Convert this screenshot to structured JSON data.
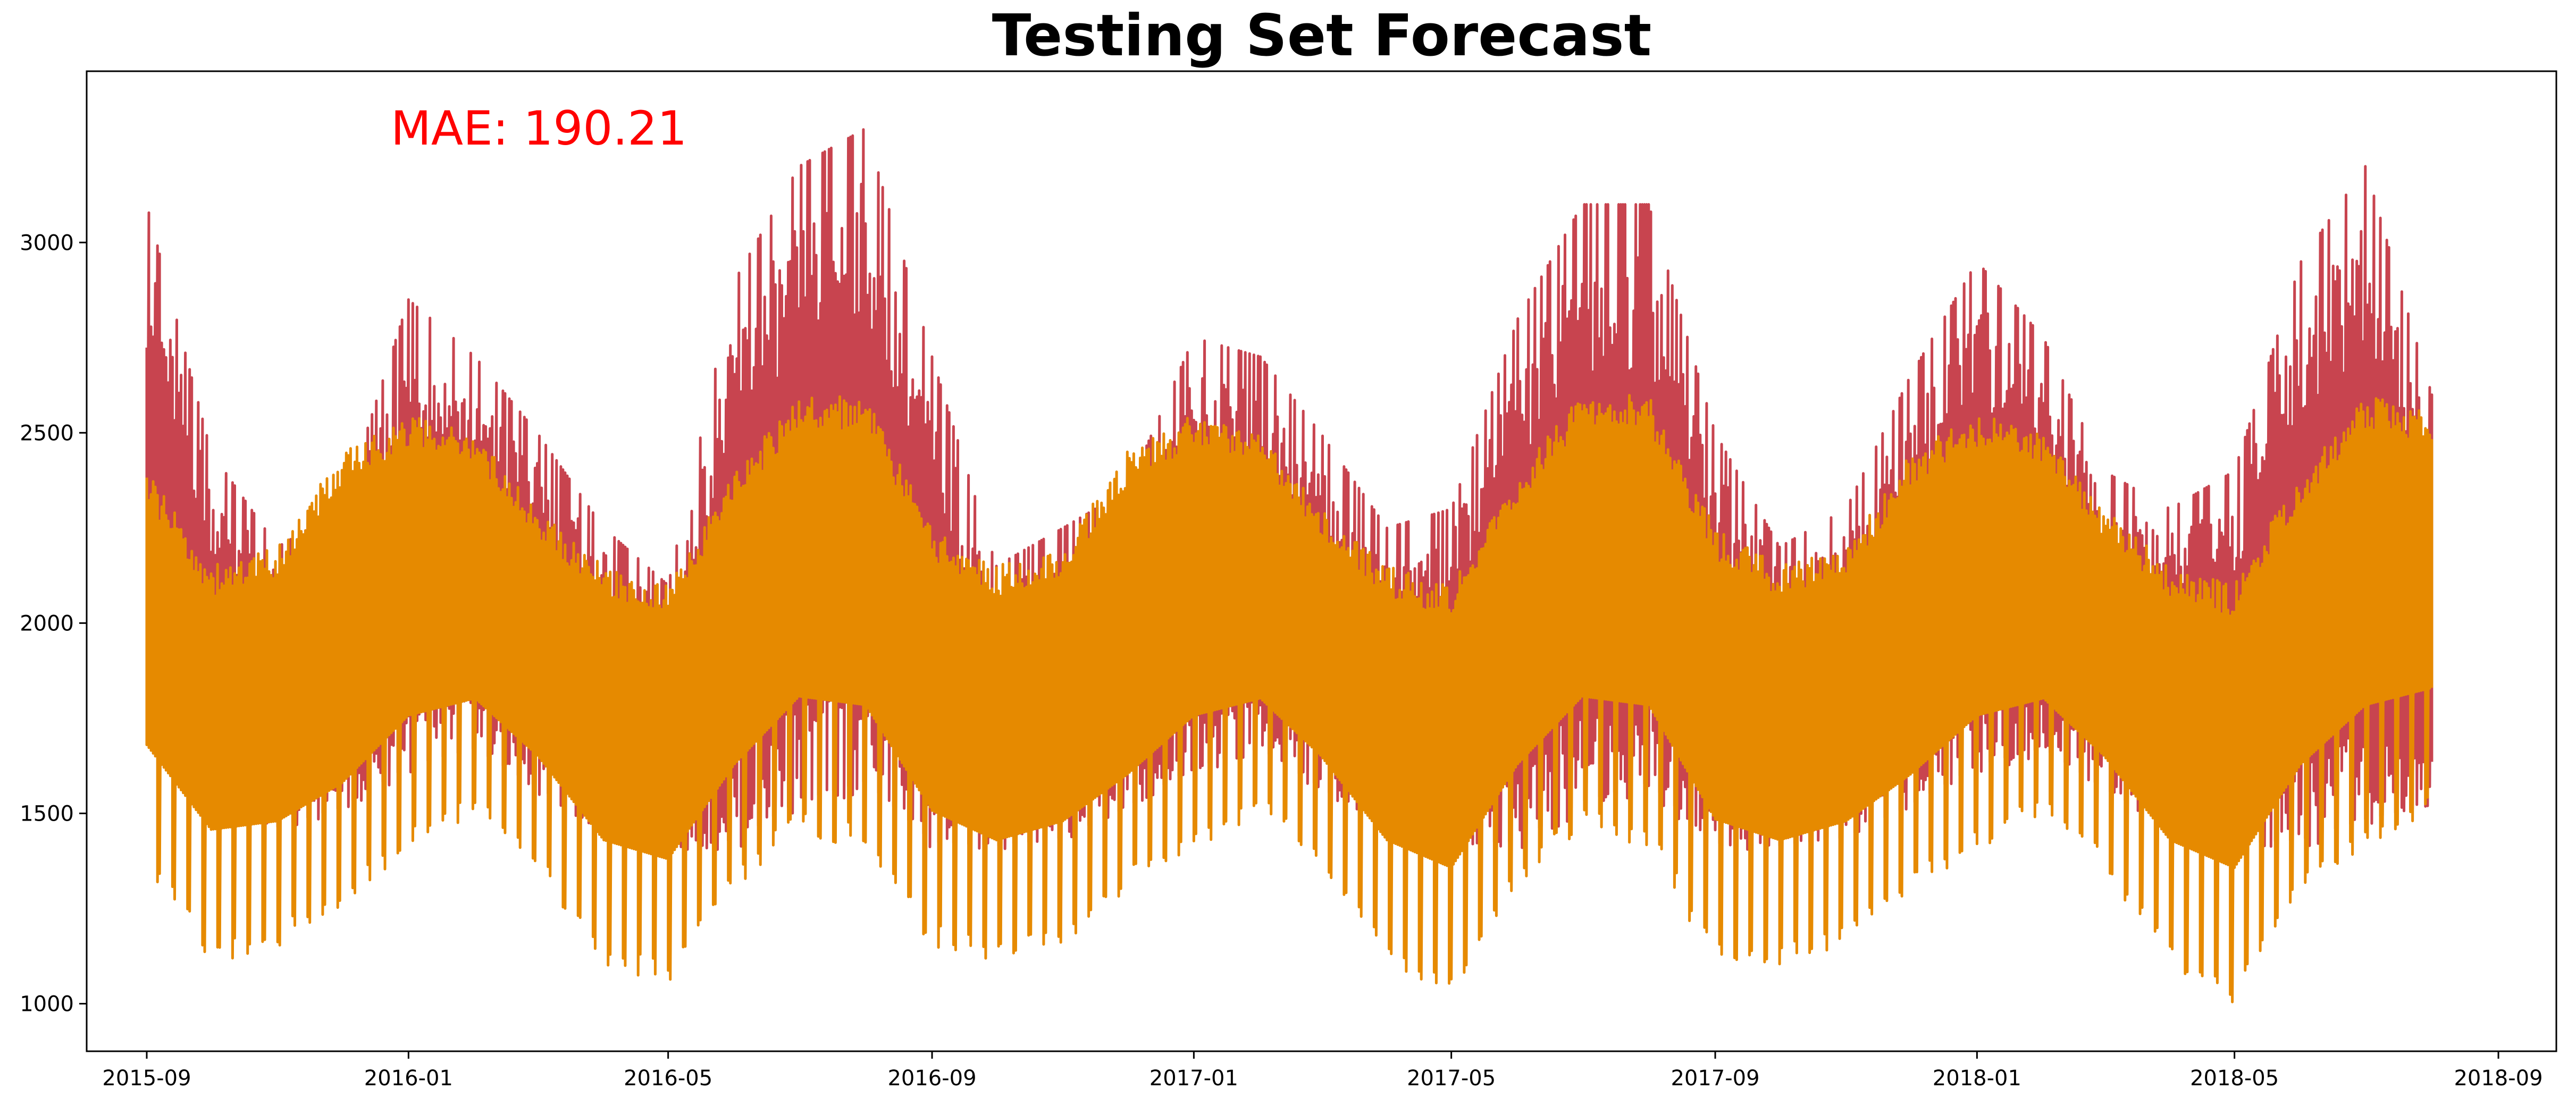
{
  "chart_data": {
    "type": "line",
    "title": "Testing Set Forecast",
    "xlabel": "",
    "ylabel": "",
    "x_range": [
      "2015-08-04",
      "2018-09-28"
    ],
    "ylim": [
      875,
      3450
    ],
    "x_ticks": [
      "2015-09",
      "2016-01",
      "2016-05",
      "2016-09",
      "2017-01",
      "2017-05",
      "2017-09",
      "2018-01",
      "2018-05",
      "2018-09"
    ],
    "y_ticks": [
      1000,
      1500,
      2000,
      2500,
      3000
    ],
    "grid": false,
    "legend": "none",
    "annotation": {
      "text": "MAE: 190.21",
      "color": "#ff0000"
    },
    "series": [
      {
        "role": "actual",
        "color": "#c8444f",
        "x": [
          "2015-09-01",
          "2015-10-01",
          "2015-11-01",
          "2015-12-01",
          "2016-01-01",
          "2016-02-01",
          "2016-03-01",
          "2016-04-01",
          "2016-05-01",
          "2016-06-01",
          "2016-07-01",
          "2016-08-01",
          "2016-09-01",
          "2016-10-01",
          "2016-11-01",
          "2016-12-01",
          "2017-01-01",
          "2017-02-01",
          "2017-03-01",
          "2017-04-01",
          "2017-05-01",
          "2017-06-01",
          "2017-07-01",
          "2017-08-01",
          "2017-09-01",
          "2017-10-01",
          "2017-11-01",
          "2017-12-01",
          "2018-01-01",
          "2018-02-01",
          "2018-03-01",
          "2018-04-01",
          "2018-05-01",
          "2018-06-01",
          "2018-07-01",
          "2018-08-01"
        ],
        "max": [
          3100,
          2450,
          2200,
          2300,
          2850,
          2700,
          2500,
          2250,
          2100,
          2900,
          3200,
          3300,
          2700,
          2150,
          2250,
          2350,
          2750,
          2700,
          2500,
          2250,
          2300,
          2800,
          3100,
          3100,
          2500,
          2200,
          2300,
          2650,
          2950,
          2750,
          2400,
          2300,
          2400,
          2950,
          3200,
          2600
        ],
        "min": [
          1730,
          1500,
          1450,
          1500,
          1600,
          1650,
          1550,
          1450,
          1400,
          1400,
          1500,
          1550,
          1400,
          1400,
          1420,
          1500,
          1600,
          1650,
          1550,
          1450,
          1400,
          1400,
          1500,
          1550,
          1400,
          1400,
          1420,
          1500,
          1600,
          1650,
          1550,
          1450,
          1400,
          1400,
          1450,
          1500
        ]
      },
      {
        "role": "forecast",
        "color": "#e68a00",
        "x": [
          "2015-09-01",
          "2015-10-01",
          "2015-11-01",
          "2015-12-01",
          "2016-01-01",
          "2016-02-01",
          "2016-03-01",
          "2016-04-01",
          "2016-05-01",
          "2016-06-01",
          "2016-07-01",
          "2016-08-01",
          "2016-09-01",
          "2016-10-01",
          "2016-11-01",
          "2016-12-01",
          "2017-01-01",
          "2017-02-01",
          "2017-03-01",
          "2017-04-01",
          "2017-05-01",
          "2017-06-01",
          "2017-07-01",
          "2017-08-01",
          "2017-09-01",
          "2017-10-01",
          "2017-11-01",
          "2017-12-01",
          "2018-01-01",
          "2018-02-01",
          "2018-03-01",
          "2018-04-01",
          "2018-05-01",
          "2018-06-01",
          "2018-07-01",
          "2018-08-01"
        ],
        "max": [
          2400,
          2150,
          2200,
          2450,
          2550,
          2500,
          2300,
          2150,
          2100,
          2400,
          2600,
          2600,
          2250,
          2150,
          2200,
          2450,
          2550,
          2500,
          2300,
          2150,
          2100,
          2400,
          2600,
          2600,
          2250,
          2150,
          2200,
          2450,
          2550,
          2500,
          2300,
          2150,
          2100,
          2400,
          2600,
          2550
        ],
        "min": [
          1350,
          1100,
          1150,
          1250,
          1400,
          1500,
          1350,
          1100,
          1050,
          1300,
          1450,
          1400,
          1150,
          1100,
          1150,
          1300,
          1400,
          1500,
          1350,
          1100,
          1000,
          1300,
          1450,
          1400,
          1100,
          1100,
          1150,
          1300,
          1400,
          1500,
          1350,
          1100,
          1000,
          1300,
          1400,
          1500
        ],
        "level": [
          1950,
          1750,
          1750,
          1850,
          2050,
          2050,
          1900,
          1700,
          1650,
          1900,
          2100,
          2100,
          1800,
          1700,
          1750,
          1850,
          2050,
          2050,
          1900,
          1700,
          1650,
          1900,
          2100,
          2100,
          1800,
          1700,
          1750,
          1850,
          2050,
          2050,
          1900,
          1700,
          1650,
          1900,
          2100,
          2100
        ]
      }
    ]
  }
}
